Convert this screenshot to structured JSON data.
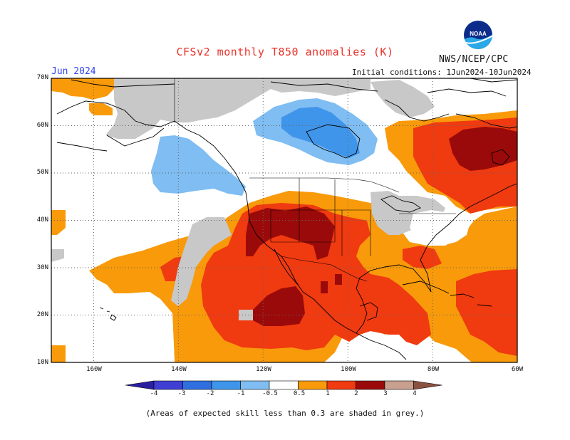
{
  "title": "CFSv2 monthly T850 anomalies (K)",
  "forecast_month": "Jun 2024",
  "initial_conditions": "Initial conditions: 1Jun2024-10Jun2024",
  "agency": "NWS/NCEP/CPC",
  "logo_text": "NOAA",
  "footnote": "(Areas of expected skill less than 0.3 are shaded in grey.)",
  "map": {
    "lat_range": [
      10,
      70
    ],
    "lon_range": [
      -170,
      -60
    ],
    "lat_ticks": [
      "70N",
      "60N",
      "50N",
      "40N",
      "30N",
      "20N",
      "10N"
    ],
    "lon_ticks": [
      "160W",
      "140W",
      "120W",
      "100W",
      "80W",
      "60W"
    ]
  },
  "colorbar": {
    "labels": [
      "-4",
      "-3",
      "-2",
      "-1",
      "-0.5",
      "0.5",
      "1",
      "2",
      "3",
      "4"
    ],
    "colors": [
      "#2a1fa0",
      "#3f3fd4",
      "#2f6fe0",
      "#3f95ea",
      "#7fbdf2",
      "#ffffff",
      "#f89a0a",
      "#f03a10",
      "#9b0a0a",
      "#c8a090",
      "#8a5040"
    ]
  },
  "colors": {
    "grey_low_skill": "#c8c8c8",
    "title": "#e8322a",
    "month": "#3344ee"
  }
}
